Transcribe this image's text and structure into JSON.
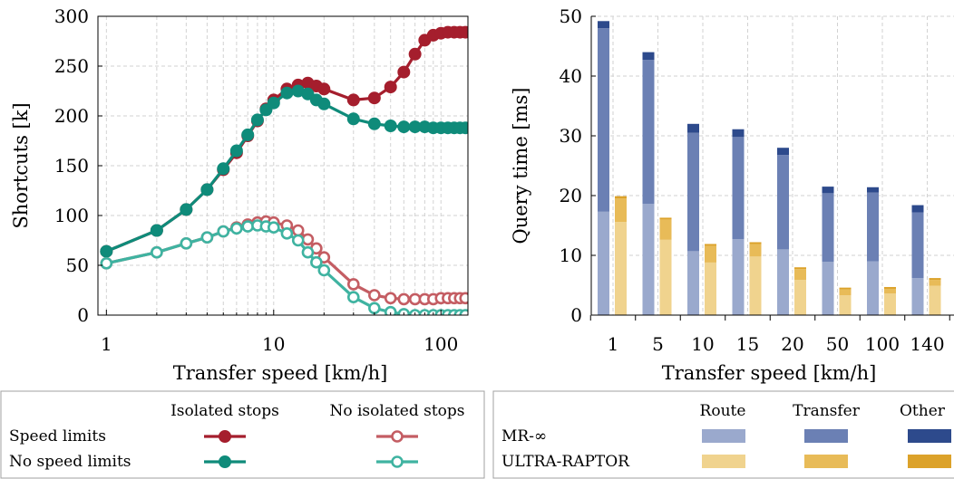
{
  "chart_data": [
    {
      "type": "line",
      "xlabel": "Transfer speed [km/h]",
      "ylabel": "Shortcuts [k]",
      "xscale": "log",
      "xlim": [
        1,
        140
      ],
      "ylim": [
        0,
        300
      ],
      "grid": true,
      "xticks": [
        "1",
        "10",
        "100"
      ],
      "yticks": [
        "0",
        "50",
        "100",
        "150",
        "200",
        "250",
        "300"
      ],
      "x": [
        1,
        2,
        3,
        4,
        5,
        6,
        7,
        8,
        9,
        10,
        12,
        14,
        16,
        18,
        20,
        30,
        40,
        50,
        60,
        70,
        80,
        90,
        100,
        110,
        120,
        130,
        140
      ],
      "series": [
        {
          "key": "speed_isolated",
          "color": "#a51e2d",
          "marker": "filled",
          "values": [
            64,
            85,
            106,
            126,
            146,
            163,
            180,
            195,
            207,
            216,
            227,
            231,
            233,
            230,
            227,
            216,
            218,
            229,
            244,
            262,
            276,
            281,
            283,
            284,
            284,
            284,
            284
          ]
        },
        {
          "key": "nospeed_isolated",
          "color": "#0f8b7a",
          "marker": "filled",
          "values": [
            64,
            85,
            106,
            126,
            147,
            165,
            181,
            196,
            206,
            213,
            223,
            225,
            222,
            216,
            212,
            197,
            192,
            190,
            189,
            189,
            189,
            188,
            188,
            188,
            188,
            188,
            188
          ]
        },
        {
          "key": "speed_noisolated",
          "color": "#c45d63",
          "marker": "open",
          "values": [
            52,
            63,
            72,
            78,
            84,
            88,
            91,
            93,
            94,
            93,
            90,
            85,
            76,
            67,
            58,
            31,
            20,
            17,
            16,
            16,
            16,
            16,
            17,
            17,
            17,
            17,
            17
          ]
        },
        {
          "key": "nospeed_noisolated",
          "color": "#3fb3a1",
          "marker": "open",
          "values": [
            52,
            63,
            72,
            78,
            84,
            87,
            89,
            90,
            89,
            88,
            82,
            75,
            63,
            53,
            45,
            18,
            7,
            3,
            1,
            0,
            0,
            0,
            0,
            0,
            0,
            0,
            0
          ]
        }
      ]
    },
    {
      "type": "bar",
      "stacked": true,
      "grouped": true,
      "xlabel": "Transfer speed [km/h]",
      "ylabel": "Query time [ms]",
      "ylim": [
        0,
        50
      ],
      "grid": true,
      "categories": [
        "1",
        "5",
        "10",
        "15",
        "20",
        "50",
        "100",
        "140"
      ],
      "yticks": [
        "0",
        "10",
        "20",
        "30",
        "40",
        "50"
      ],
      "groups": [
        {
          "key": "mr",
          "segments": [
            {
              "key": "route",
              "color": "#9aa9cd",
              "values": [
                17.3,
                18.6,
                10.7,
                12.7,
                11.0,
                8.9,
                9.0,
                6.2
              ]
            },
            {
              "key": "transfer",
              "color": "#6b80b4",
              "values": [
                30.7,
                24.1,
                19.8,
                17.1,
                15.8,
                11.5,
                11.5,
                11.0
              ]
            },
            {
              "key": "other",
              "color": "#2d4a8c",
              "values": [
                1.2,
                1.3,
                1.5,
                1.3,
                1.2,
                1.1,
                0.9,
                1.2
              ]
            }
          ]
        },
        {
          "key": "ultra",
          "segments": [
            {
              "key": "route",
              "color": "#f0d38e",
              "values": [
                15.6,
                12.6,
                8.8,
                9.8,
                5.9,
                3.3,
                3.6,
                4.9
              ]
            },
            {
              "key": "transfer",
              "color": "#e8bb58",
              "values": [
                3.9,
                3.4,
                2.8,
                2.1,
                1.8,
                1.0,
                0.8,
                1.0
              ]
            },
            {
              "key": "other",
              "color": "#dca22a",
              "values": [
                0.4,
                0.3,
                0.3,
                0.3,
                0.3,
                0.3,
                0.3,
                0.3
              ]
            }
          ]
        }
      ]
    }
  ],
  "legend_left": {
    "col1": "Isolated stops",
    "col2": "No isolated stops",
    "row1": "Speed limits",
    "row2": "No speed limits"
  },
  "legend_right": {
    "col1": "Route",
    "col2": "Transfer",
    "col3": "Other",
    "row1": "MR-∞",
    "row2": "ULTRA-RAPTOR"
  }
}
